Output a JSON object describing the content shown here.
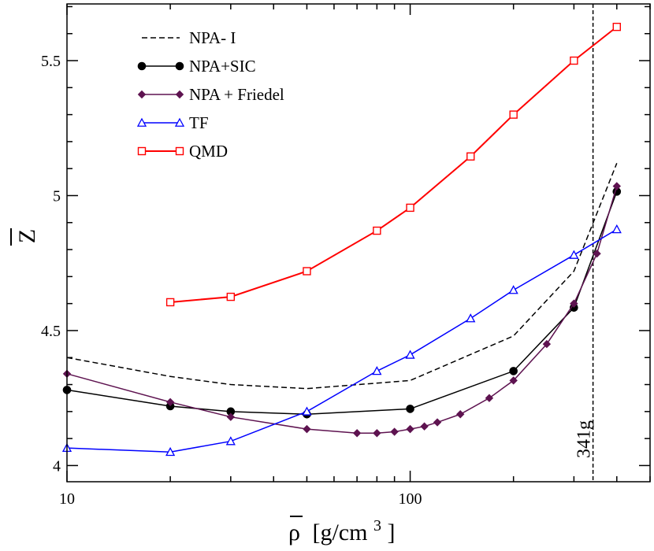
{
  "chart_data": {
    "type": "line",
    "xscale": "log",
    "xlim": [
      10,
      500
    ],
    "ylim": [
      3.94,
      5.71
    ],
    "x_ticks": [
      10,
      100
    ],
    "x_tick_labels": [
      "10",
      "100"
    ],
    "y_ticks": [
      4,
      4.5,
      5,
      5.5
    ],
    "y_tick_labels": [
      "4",
      "4.5",
      "5",
      "5.5"
    ],
    "xlabel_main": "ρ",
    "xlabel_units": "[g/cm",
    "xlabel_sup": "3",
    "xlabel_close": "]",
    "ylabel": "Z",
    "grid": false,
    "legend_position": "top-left",
    "series": [
      {
        "name": "NPA- I",
        "color": "#000000",
        "dash": true,
        "marker": "none",
        "x": [
          10,
          20,
          30,
          50,
          100,
          200,
          300,
          400
        ],
        "y": [
          4.4,
          4.33,
          4.3,
          4.285,
          4.315,
          4.48,
          4.72,
          5.12
        ]
      },
      {
        "name": "NPA+SIC",
        "color": "#000000",
        "dash": false,
        "marker": "circle",
        "x": [
          10,
          20,
          30,
          50,
          100,
          200,
          300,
          400
        ],
        "y": [
          4.28,
          4.22,
          4.2,
          4.19,
          4.21,
          4.35,
          4.585,
          5.015
        ]
      },
      {
        "name": "NPA + Friedel",
        "color": "#5e1350",
        "dash": false,
        "marker": "diamond",
        "x": [
          10,
          20,
          30,
          50,
          70,
          80,
          90,
          100,
          110,
          120,
          140,
          170,
          200,
          250,
          300,
          350,
          400
        ],
        "y": [
          4.34,
          4.235,
          4.18,
          4.135,
          4.12,
          4.12,
          4.125,
          4.135,
          4.145,
          4.16,
          4.19,
          4.25,
          4.315,
          4.45,
          4.6,
          4.785,
          5.035
        ]
      },
      {
        "name": "TF",
        "color": "#0000ff",
        "dash": false,
        "marker": "triangle",
        "x": [
          10,
          20,
          30,
          50,
          80,
          100,
          150,
          200,
          300,
          400
        ],
        "y": [
          4.065,
          4.05,
          4.09,
          4.2,
          4.35,
          4.41,
          4.545,
          4.65,
          4.78,
          4.875
        ]
      },
      {
        "name": "QMD",
        "color": "#ff0000",
        "dash": false,
        "marker": "square",
        "x": [
          20,
          30,
          50,
          80,
          100,
          150,
          200,
          300,
          400
        ],
        "y": [
          4.605,
          4.625,
          4.72,
          4.87,
          4.955,
          5.145,
          5.3,
          5.5,
          5.625
        ]
      }
    ],
    "annotations": [
      {
        "text": "341g",
        "x": 341,
        "vline": true,
        "color": "#000000"
      }
    ]
  }
}
